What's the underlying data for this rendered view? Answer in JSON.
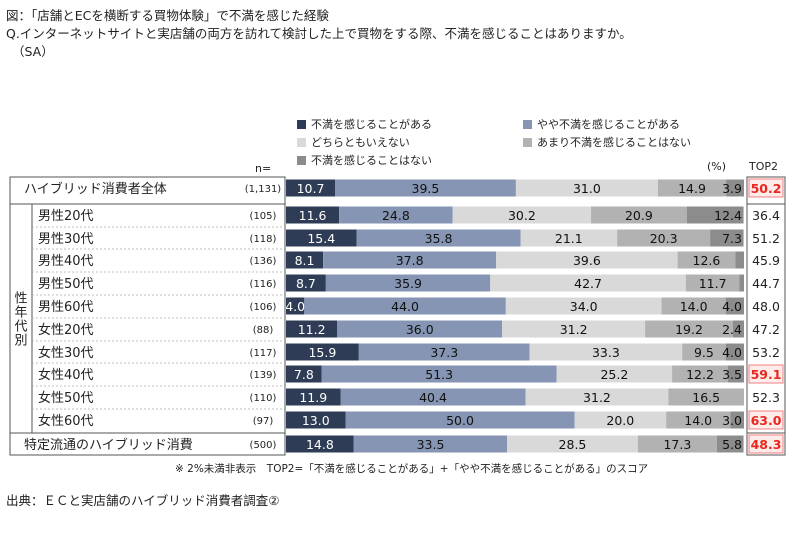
{
  "header": {
    "line1": "図：「店舗とECを横断する買物体験」で不満を感じた経験",
    "line2": "Q.インターネットサイトと実店舗の両方を訪れて検討した上で買物をする際、不満を感じることはありますか。",
    "line3": "（SA）"
  },
  "legend": [
    {
      "label": "不満を感じることがある",
      "color": "#2e3c55"
    },
    {
      "label": "やや不満を感じることがある",
      "color": "#8595b3"
    },
    {
      "label": "どちらともいえない",
      "color": "#d9d9d9"
    },
    {
      "label": "あまり不満を感じることはない",
      "color": "#b2b2b2"
    },
    {
      "label": "不満を感じることはない",
      "color": "#8c8c8c"
    }
  ],
  "labels": {
    "n_header": "n=",
    "percent_unit": "(%)",
    "top2_header": "TOP2",
    "group_label": "性年代別",
    "footnote": "※ 2%未満非表示　TOP2=「不満を感じることがある」+「やや不満を感じることがある」のスコア",
    "source": "出典：ＥＣと実店舗のハイブリッド消費者調査②"
  },
  "chart_data": {
    "type": "bar",
    "stacked": true,
    "orientation": "horizontal",
    "x_range": [
      0,
      100
    ],
    "categories": [
      "ハイブリッド消費者全体",
      "男性20代",
      "男性30代",
      "男性40代",
      "男性50代",
      "男性60代",
      "女性20代",
      "女性30代",
      "女性40代",
      "女性50代",
      "女性60代",
      "特定流通のハイブリッド消費"
    ],
    "n": [
      "(1,131)",
      "(105)",
      "(118)",
      "(136)",
      "(116)",
      "(106)",
      "(88)",
      "(117)",
      "(139)",
      "(110)",
      "(97)",
      "(500)"
    ],
    "series": [
      {
        "name": "不満を感じることがある",
        "values": [
          10.7,
          11.6,
          15.4,
          8.1,
          8.7,
          4.0,
          11.2,
          15.9,
          7.8,
          11.9,
          13.0,
          14.8
        ]
      },
      {
        "name": "やや不満を感じることがある",
        "values": [
          39.5,
          24.8,
          35.8,
          37.8,
          35.9,
          44.0,
          36.0,
          37.3,
          51.3,
          40.4,
          50.0,
          33.5
        ]
      },
      {
        "name": "どちらともいえない",
        "values": [
          31.0,
          30.2,
          21.1,
          39.6,
          42.7,
          34.0,
          31.2,
          33.3,
          25.2,
          31.2,
          20.0,
          28.5
        ]
      },
      {
        "name": "あまり不満を感じることはない",
        "values": [
          14.9,
          20.9,
          20.3,
          12.6,
          11.7,
          14.0,
          19.2,
          9.5,
          12.2,
          16.5,
          14.0,
          17.3
        ]
      },
      {
        "name": "不満を感じることはない",
        "values": [
          3.9,
          12.4,
          7.3,
          1.9,
          1.0,
          4.0,
          2.4,
          4.0,
          3.5,
          0.0,
          3.0,
          5.8
        ]
      }
    ],
    "value_labels": [
      [
        "10.7",
        "39.5",
        "31.0",
        "14.9",
        "3.9"
      ],
      [
        "11.6",
        "24.8",
        "30.2",
        "20.9",
        "12.4"
      ],
      [
        "15.4",
        "35.8",
        "21.1",
        "20.3",
        "7.3"
      ],
      [
        "8.1",
        "37.8",
        "39.6",
        "12.6",
        ""
      ],
      [
        "8.7",
        "35.9",
        "42.7",
        "11.7",
        ""
      ],
      [
        "4.0",
        "44.0",
        "34.0",
        "14.0",
        "4.0"
      ],
      [
        "11.2",
        "36.0",
        "31.2",
        "19.2",
        "2.4"
      ],
      [
        "15.9",
        "37.3",
        "33.3",
        "9.5",
        "4.0"
      ],
      [
        "7.8",
        "51.3",
        "25.2",
        "12.2",
        "3.5"
      ],
      [
        "11.9",
        "40.4",
        "31.2",
        "16.5",
        ""
      ],
      [
        "13.0",
        "50.0",
        "20.0",
        "14.0",
        "3.0"
      ],
      [
        "14.8",
        "33.5",
        "28.5",
        "17.3",
        "5.8"
      ]
    ],
    "top2": [
      "50.2",
      "36.4",
      "51.2",
      "45.9",
      "44.7",
      "48.0",
      "47.2",
      "53.2",
      "59.1",
      "52.3",
      "63.0",
      "48.3"
    ],
    "top2_highlight": [
      true,
      false,
      false,
      false,
      false,
      false,
      false,
      false,
      true,
      false,
      true,
      true
    ],
    "highlight_color": "#e8281e",
    "highlight_border": "#f08080"
  }
}
